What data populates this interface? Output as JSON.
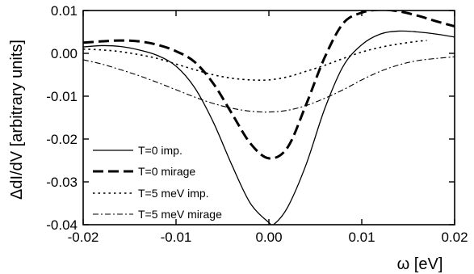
{
  "chart_data": {
    "type": "line",
    "xlabel": "ω [eV]",
    "ylabel": "ΔdI/dV [arbitrary units]",
    "xlim": [
      -0.02,
      0.02
    ],
    "ylim": [
      -0.04,
      0.01
    ],
    "x_ticks": [
      -0.02,
      -0.01,
      0.0,
      0.01,
      0.02
    ],
    "x_tick_labels": [
      "-0.02",
      "-0.01",
      "0.00",
      "0.01",
      "0.02"
    ],
    "y_ticks": [
      0.01,
      0.0,
      -0.01,
      -0.02,
      -0.03,
      -0.04
    ],
    "y_tick_labels": [
      "0.01",
      "0.00",
      "-0.01",
      "-0.02",
      "-0.03",
      "-0.04"
    ],
    "grid": false,
    "legend_position": "bottom-left",
    "series": [
      {
        "name": "T=0 imp.",
        "style": "solid",
        "x": [
          -0.02,
          -0.018,
          -0.016,
          -0.014,
          -0.012,
          -0.01,
          -0.008,
          -0.006,
          -0.004,
          -0.002,
          0.0,
          0.0005,
          0.002,
          0.004,
          0.006,
          0.008,
          0.01,
          0.012,
          0.014,
          0.016,
          0.018,
          0.02
        ],
        "y": [
          0.0015,
          0.0018,
          0.0016,
          0.0008,
          -0.0005,
          -0.003,
          -0.008,
          -0.016,
          -0.026,
          -0.035,
          -0.0395,
          -0.04,
          -0.036,
          -0.026,
          -0.013,
          -0.003,
          0.002,
          0.0045,
          0.0052,
          0.005,
          0.0045,
          0.0038
        ]
      },
      {
        "name": "T=0 mirage",
        "style": "dashed",
        "x": [
          -0.02,
          -0.018,
          -0.016,
          -0.014,
          -0.012,
          -0.01,
          -0.008,
          -0.006,
          -0.004,
          -0.002,
          0.0,
          0.002,
          0.004,
          0.006,
          0.008,
          0.01,
          0.012,
          0.014,
          0.016,
          0.018,
          0.02
        ],
        "y": [
          0.0025,
          0.0028,
          0.003,
          0.0028,
          0.002,
          0.0005,
          -0.002,
          -0.007,
          -0.014,
          -0.021,
          -0.0245,
          -0.022,
          -0.012,
          -0.001,
          0.007,
          0.0095,
          0.0102,
          0.0098,
          0.0088,
          0.0075,
          0.0063
        ]
      },
      {
        "name": "T=5 meV imp.",
        "style": "dotted",
        "x": [
          -0.02,
          -0.018,
          -0.016,
          -0.014,
          -0.012,
          -0.01,
          -0.008,
          -0.006,
          -0.004,
          -0.002,
          0.0,
          0.002,
          0.004,
          0.006,
          0.008,
          0.01,
          0.012,
          0.014,
          0.016,
          0.017
        ],
        "y": [
          0.001,
          0.0008,
          0.0004,
          -0.0003,
          -0.0012,
          -0.0025,
          -0.0038,
          -0.005,
          -0.0058,
          -0.0062,
          -0.0062,
          -0.0055,
          -0.0042,
          -0.0028,
          -0.0012,
          0.0003,
          0.0014,
          0.0022,
          0.0028,
          0.003
        ]
      },
      {
        "name": "T=5 meV mirage",
        "style": "dashdot",
        "x": [
          -0.02,
          -0.018,
          -0.016,
          -0.014,
          -0.012,
          -0.01,
          -0.008,
          -0.006,
          -0.004,
          -0.002,
          0.0,
          0.002,
          0.004,
          0.006,
          0.008,
          0.01,
          0.012,
          0.014,
          0.016,
          0.018,
          0.02
        ],
        "y": [
          -0.0015,
          -0.0025,
          -0.0038,
          -0.0052,
          -0.0068,
          -0.0085,
          -0.0102,
          -0.0117,
          -0.0128,
          -0.0135,
          -0.0137,
          -0.0133,
          -0.0122,
          -0.0105,
          -0.0085,
          -0.0062,
          -0.0042,
          -0.0027,
          -0.0017,
          -0.0012,
          -0.0008
        ]
      }
    ]
  }
}
